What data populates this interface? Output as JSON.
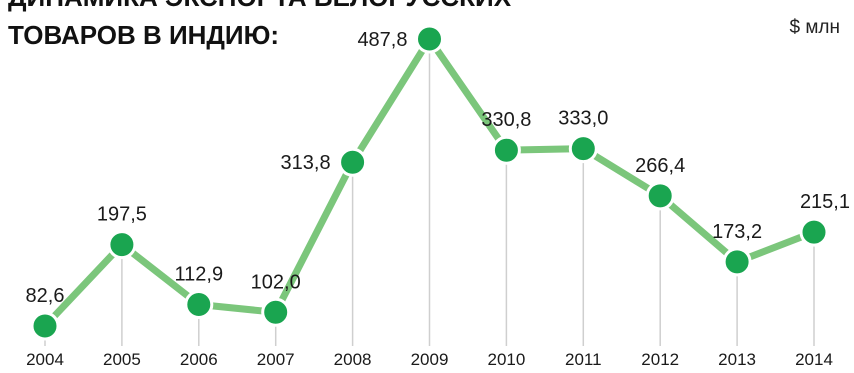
{
  "chart_data": {
    "type": "line",
    "title_lines": [
      "ДИНАМИКА ЭКСПОРТА БЕЛОРУССКИХ",
      "ТОВАРОВ В ИНДИЮ:"
    ],
    "unit": "$ млн",
    "categories": [
      "2004",
      "2005",
      "2006",
      "2007",
      "2008",
      "2009",
      "2010",
      "2011",
      "2012",
      "2013",
      "2014"
    ],
    "values": [
      82.6,
      197.5,
      112.9,
      102.0,
      313.8,
      487.8,
      330.8,
      333.0,
      266.4,
      173.2,
      215.1
    ],
    "value_labels": [
      "82,6",
      "197,5",
      "112,9",
      "102,0",
      "313,8",
      "487,8",
      "330,8",
      "333,0",
      "266,4",
      "173,2",
      "215,1"
    ],
    "grid": false,
    "legend": "none",
    "colors": {
      "line": "#7bc67b",
      "marker": "#1aa550",
      "drop_line": "#cfcfcf",
      "text": "#1a1a1a"
    }
  }
}
